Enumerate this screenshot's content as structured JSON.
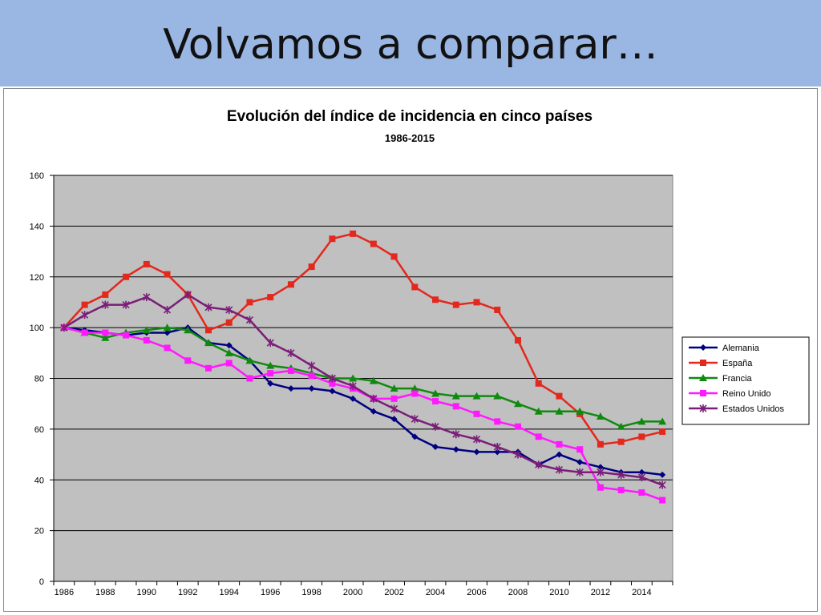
{
  "slide": {
    "title": "Volvamos a comparar…"
  },
  "colors": {
    "title_bar": "#9ab6e2",
    "plot_bg": "#c0c0c0",
    "grid": "#000000"
  },
  "chart_data": {
    "type": "line",
    "title": "Evolución del índice de incidencia en cinco países",
    "subtitle": "1986-2015",
    "xlabel": "",
    "ylabel": "",
    "x": [
      1986,
      1987,
      1988,
      1989,
      1990,
      1991,
      1992,
      1993,
      1994,
      1995,
      1996,
      1997,
      1998,
      1999,
      2000,
      2001,
      2002,
      2003,
      2004,
      2005,
      2006,
      2007,
      2008,
      2009,
      2010,
      2011,
      2012,
      2013,
      2014,
      2015
    ],
    "xlim": [
      1986,
      2016
    ],
    "x_ticks": [
      1986,
      1988,
      1990,
      1992,
      1994,
      1996,
      1998,
      2000,
      2002,
      2004,
      2006,
      2008,
      2010,
      2012,
      2014
    ],
    "ylim": [
      0,
      160
    ],
    "y_ticks": [
      0,
      20,
      40,
      60,
      80,
      100,
      120,
      140,
      160
    ],
    "grid": true,
    "legend_position": "right",
    "series": [
      {
        "name": "Alemania",
        "color": "#000080",
        "marker": "diamond",
        "values": [
          100,
          99,
          98,
          97,
          98,
          98,
          100,
          94,
          93,
          87,
          78,
          76,
          76,
          75,
          72,
          67,
          64,
          57,
          53,
          52,
          51,
          51,
          51,
          46,
          50,
          47,
          45,
          43,
          43,
          42
        ]
      },
      {
        "name": "España",
        "color": "#e3281d",
        "marker": "square",
        "values": [
          100,
          109,
          113,
          120,
          125,
          121,
          113,
          99,
          102,
          110,
          112,
          117,
          124,
          135,
          137,
          133,
          128,
          116,
          111,
          109,
          110,
          107,
          95,
          78,
          73,
          66,
          54,
          55,
          57,
          59
        ]
      },
      {
        "name": "Francia",
        "color": "#0f8a0f",
        "marker": "triangle",
        "values": [
          100,
          98,
          96,
          98,
          99,
          100,
          99,
          94,
          90,
          87,
          85,
          84,
          82,
          80,
          80,
          79,
          76,
          76,
          74,
          73,
          73,
          73,
          70,
          67,
          67,
          67,
          65,
          61,
          63,
          63
        ]
      },
      {
        "name": "Reino Unido",
        "color": "#ff19ff",
        "marker": "square",
        "values": [
          100,
          98,
          98,
          97,
          95,
          92,
          87,
          84,
          86,
          80,
          82,
          83,
          81,
          78,
          76,
          72,
          72,
          74,
          71,
          69,
          66,
          63,
          61,
          57,
          54,
          52,
          37,
          36,
          35,
          32
        ]
      },
      {
        "name": "Estados Unidos",
        "color": "#7a1e78",
        "marker": "x",
        "values": [
          100,
          105,
          109,
          109,
          112,
          107,
          113,
          108,
          107,
          103,
          94,
          90,
          85,
          80,
          77,
          72,
          68,
          64,
          61,
          58,
          56,
          53,
          50,
          46,
          44,
          43,
          43,
          42,
          41,
          38
        ]
      }
    ]
  }
}
